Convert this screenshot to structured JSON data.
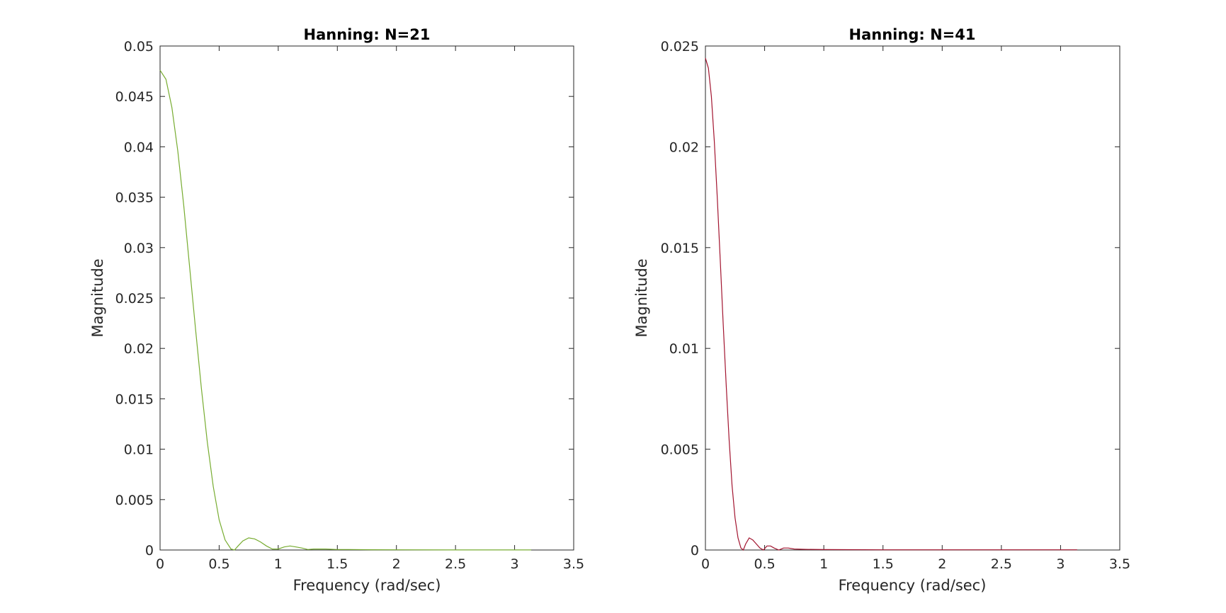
{
  "chart_data": [
    {
      "type": "line",
      "title": "Hanning: N=21",
      "xlabel": "Frequency (rad/sec)",
      "ylabel": "Magnitude",
      "xlim": [
        0,
        3.5
      ],
      "ylim": [
        0,
        0.05
      ],
      "xticks": [
        0,
        0.5,
        1,
        1.5,
        2,
        2.5,
        3,
        3.5
      ],
      "xtick_labels": [
        "0",
        "0.5",
        "1",
        "1.5",
        "2",
        "2.5",
        "3",
        "3.5"
      ],
      "yticks": [
        0,
        0.005,
        0.01,
        0.015,
        0.02,
        0.025,
        0.03,
        0.035,
        0.04,
        0.045,
        0.05
      ],
      "ytick_labels": [
        "0",
        "0.005",
        "0.01",
        "0.015",
        "0.02",
        "0.025",
        "0.03",
        "0.035",
        "0.04",
        "0.045",
        "0.05"
      ],
      "grid": false,
      "series": [
        {
          "color": "#77ac30",
          "x": [
            0,
            0.05,
            0.1,
            0.15,
            0.2,
            0.25,
            0.3,
            0.35,
            0.4,
            0.45,
            0.5,
            0.55,
            0.6,
            0.63,
            0.66,
            0.7,
            0.75,
            0.8,
            0.85,
            0.9,
            0.95,
            1.0,
            1.05,
            1.1,
            1.15,
            1.2,
            1.25,
            1.3,
            1.4,
            1.5,
            1.6,
            1.8,
            2.0,
            2.5,
            3.0,
            3.14
          ],
          "y": [
            0.0476,
            0.0467,
            0.0439,
            0.0396,
            0.0342,
            0.0281,
            0.0219,
            0.016,
            0.0107,
            0.0063,
            0.003,
            0.001,
            0.0001,
            0.0,
            0.0004,
            0.0009,
            0.0012,
            0.0011,
            0.0008,
            0.0004,
            0.0001,
            0.0001,
            0.0003,
            0.0004,
            0.0003,
            0.0002,
            5e-05,
            0.0001,
            0.0001,
            5e-05,
            5e-05,
            3e-05,
            2e-05,
            1e-05,
            1e-05,
            1e-05
          ]
        }
      ]
    },
    {
      "type": "line",
      "title": "Hanning: N=41",
      "xlabel": "Frequency (rad/sec)",
      "ylabel": "Magnitude",
      "xlim": [
        0,
        3.5
      ],
      "ylim": [
        0,
        0.025
      ],
      "xticks": [
        0,
        0.5,
        1,
        1.5,
        2,
        2.5,
        3,
        3.5
      ],
      "xtick_labels": [
        "0",
        "0.5",
        "1",
        "1.5",
        "2",
        "2.5",
        "3",
        "3.5"
      ],
      "yticks": [
        0,
        0.005,
        0.01,
        0.015,
        0.02,
        0.025
      ],
      "ytick_labels": [
        "0",
        "0.005",
        "0.01",
        "0.015",
        "0.02",
        "0.025"
      ],
      "grid": false,
      "series": [
        {
          "color": "#a2142f",
          "x": [
            0,
            0.025,
            0.05,
            0.075,
            0.1,
            0.125,
            0.15,
            0.175,
            0.2,
            0.225,
            0.25,
            0.275,
            0.3,
            0.32,
            0.34,
            0.37,
            0.4,
            0.43,
            0.46,
            0.49,
            0.52,
            0.55,
            0.58,
            0.62,
            0.66,
            0.7,
            0.75,
            0.85,
            1.0,
            1.5,
            2.0,
            2.5,
            3.0,
            3.14
          ],
          "y": [
            0.0244,
            0.0239,
            0.0225,
            0.0203,
            0.0175,
            0.0144,
            0.0112,
            0.0082,
            0.0055,
            0.0032,
            0.0016,
            0.0006,
            0.0001,
            0.0,
            0.0003,
            0.0006,
            0.0005,
            0.0003,
            0.0001,
            0.0,
            0.0002,
            0.0002,
            0.0001,
            0.0,
            0.0001,
            0.0001,
            5e-05,
            3e-05,
            2e-05,
            1e-05,
            1e-05,
            1e-05,
            1e-05,
            1e-05
          ]
        }
      ]
    }
  ]
}
